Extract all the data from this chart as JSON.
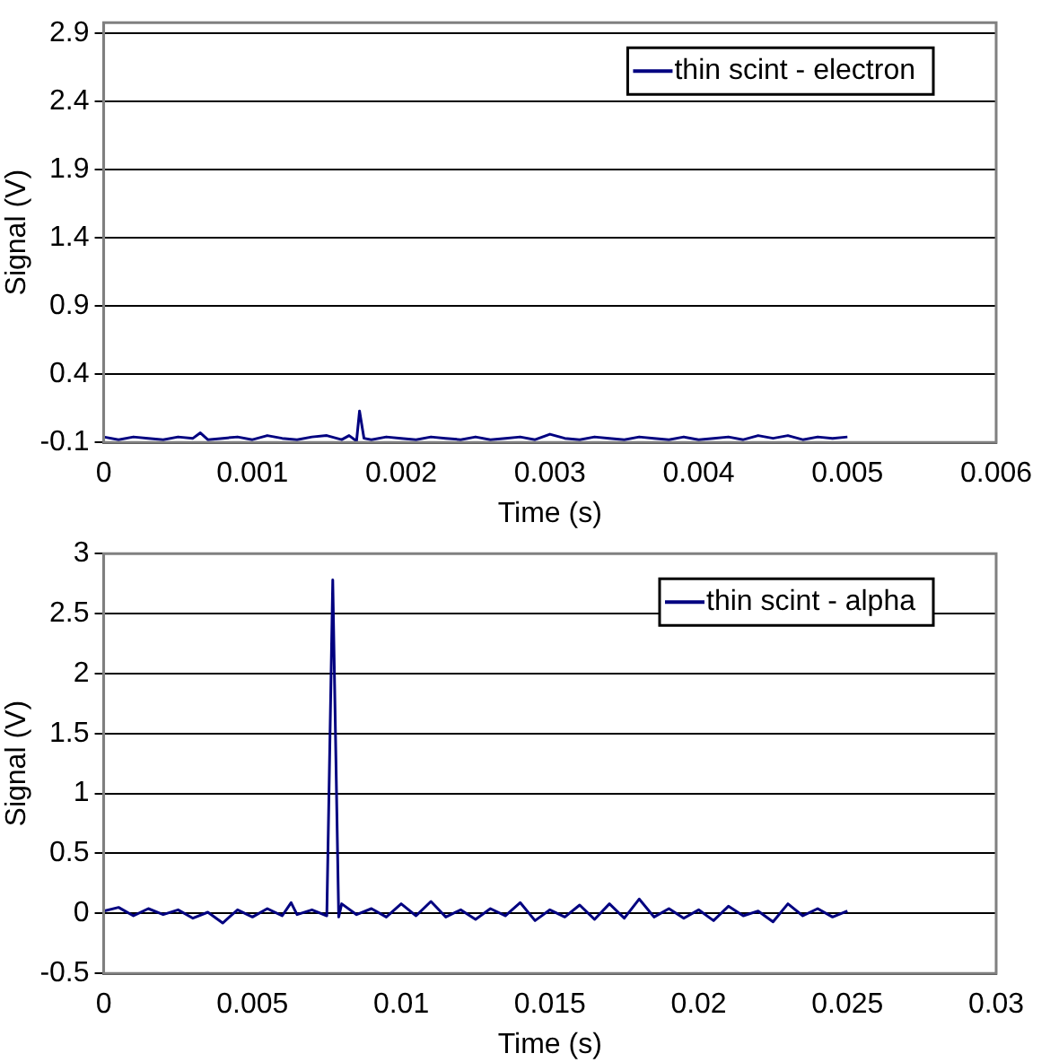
{
  "chart_data": [
    {
      "type": "line",
      "xlabel": "Time (s)",
      "ylabel": "Signal (V)",
      "legend": "top right",
      "grid": "y",
      "marker": "none",
      "xlim": [
        0,
        0.006
      ],
      "xticks": [
        0,
        0.001,
        0.002,
        0.003,
        0.004,
        0.005,
        0.006
      ],
      "ylim": [
        -0.1,
        2.98
      ],
      "yticks": [
        -0.1,
        0.4,
        0.9,
        1.4,
        1.9,
        2.4,
        2.9
      ],
      "series": [
        {
          "name": "thin scint - electron",
          "color": "#000080",
          "x": [
            0,
            0.0001,
            0.0002,
            0.0003,
            0.0004,
            0.0005,
            0.0006,
            0.00065,
            0.0007,
            0.0008,
            0.0009,
            0.001,
            0.0011,
            0.0012,
            0.0013,
            0.0014,
            0.0015,
            0.0016,
            0.00165,
            0.0017,
            0.00172,
            0.00175,
            0.0018,
            0.0019,
            0.002,
            0.0021,
            0.0022,
            0.0023,
            0.0024,
            0.0025,
            0.0026,
            0.0027,
            0.0028,
            0.0029,
            0.003,
            0.0031,
            0.0032,
            0.0033,
            0.0034,
            0.0035,
            0.0036,
            0.0037,
            0.0038,
            0.0039,
            0.004,
            0.0041,
            0.0042,
            0.0043,
            0.0044,
            0.0045,
            0.0046,
            0.0047,
            0.0048,
            0.0049,
            0.005
          ],
          "values": [
            -0.06,
            -0.08,
            -0.06,
            -0.07,
            -0.08,
            -0.06,
            -0.07,
            -0.03,
            -0.08,
            -0.07,
            -0.06,
            -0.08,
            -0.05,
            -0.07,
            -0.08,
            -0.06,
            -0.05,
            -0.08,
            -0.05,
            -0.09,
            0.13,
            -0.07,
            -0.08,
            -0.06,
            -0.07,
            -0.08,
            -0.06,
            -0.07,
            -0.08,
            -0.06,
            -0.08,
            -0.07,
            -0.06,
            -0.08,
            -0.04,
            -0.07,
            -0.08,
            -0.06,
            -0.07,
            -0.08,
            -0.06,
            -0.07,
            -0.08,
            -0.06,
            -0.08,
            -0.07,
            -0.06,
            -0.08,
            -0.05,
            -0.07,
            -0.05,
            -0.08,
            -0.06,
            -0.07,
            -0.06
          ]
        }
      ]
    },
    {
      "type": "line",
      "xlabel": "Time (s)",
      "ylabel": "Signal (V)",
      "legend": "top right",
      "grid": "y",
      "marker": "none",
      "xlim": [
        0,
        0.03
      ],
      "xticks": [
        0,
        0.005,
        0.01,
        0.015,
        0.02,
        0.025,
        0.03
      ],
      "ylim": [
        -0.5,
        3
      ],
      "yticks": [
        -0.5,
        0,
        0.5,
        1,
        1.5,
        2,
        2.5,
        3
      ],
      "series": [
        {
          "name": "thin scint - alpha",
          "color": "#000080",
          "x": [
            0,
            0.0005,
            0.001,
            0.0015,
            0.002,
            0.0025,
            0.003,
            0.0035,
            0.004,
            0.0045,
            0.005,
            0.0055,
            0.006,
            0.0063,
            0.0065,
            0.007,
            0.0075,
            0.0077,
            0.0079,
            0.008,
            0.0085,
            0.009,
            0.0095,
            0.01,
            0.0105,
            0.011,
            0.0115,
            0.012,
            0.0125,
            0.013,
            0.0135,
            0.014,
            0.0145,
            0.015,
            0.0155,
            0.016,
            0.0165,
            0.017,
            0.0175,
            0.018,
            0.0185,
            0.019,
            0.0195,
            0.02,
            0.0205,
            0.021,
            0.0215,
            0.022,
            0.0225,
            0.023,
            0.0235,
            0.024,
            0.0245,
            0.025
          ],
          "values": [
            0.02,
            0.05,
            -0.02,
            0.04,
            -0.01,
            0.03,
            -0.04,
            0.01,
            -0.08,
            0.03,
            -0.03,
            0.04,
            -0.02,
            0.09,
            -0.01,
            0.03,
            -0.02,
            2.78,
            -0.03,
            0.08,
            -0.01,
            0.04,
            -0.03,
            0.08,
            -0.02,
            0.1,
            -0.03,
            0.03,
            -0.05,
            0.04,
            -0.02,
            0.09,
            -0.06,
            0.03,
            -0.03,
            0.07,
            -0.05,
            0.08,
            -0.04,
            0.12,
            -0.03,
            0.04,
            -0.04,
            0.03,
            -0.06,
            0.06,
            -0.02,
            0.02,
            -0.07,
            0.08,
            -0.02,
            0.04,
            -0.03,
            0.02
          ]
        }
      ]
    }
  ]
}
